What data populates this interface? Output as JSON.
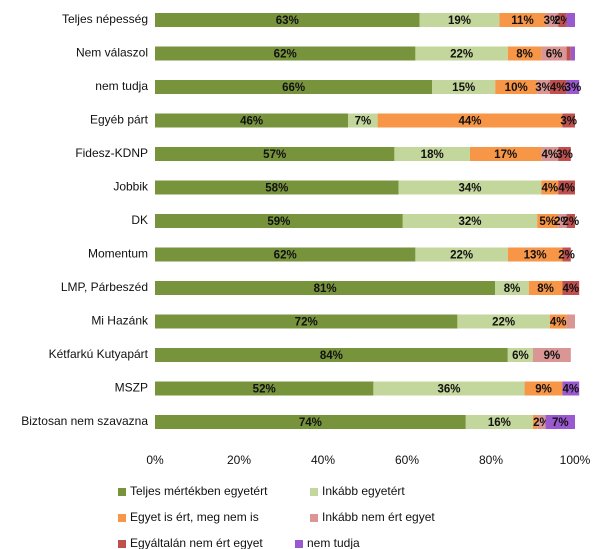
{
  "chart_data": {
    "type": "stacked-bar-horizontal",
    "categories": [
      "Teljes népesség",
      "Nem válaszol",
      "nem tudja",
      "Egyéb párt",
      "Fidesz-KDNP",
      "Jobbik",
      "DK",
      "Momentum",
      "LMP, Párbeszéd",
      "Mi Hazánk",
      "Kétfarkú Kutyapárt",
      "MSZP",
      "Biztosan nem szavazna"
    ],
    "series": [
      {
        "name": "Teljes mértékben egyetért",
        "color": "#77933c",
        "values": [
          63,
          62,
          66,
          46,
          57,
          58,
          59,
          62,
          81,
          72,
          84,
          52,
          74
        ],
        "value_labels": [
          "63%",
          "62%",
          "66%",
          "46%",
          "57%",
          "58%",
          "59%",
          "62%",
          "81%",
          "72%",
          "84%",
          "52%",
          "74%"
        ]
      },
      {
        "name": "Inkább egyetért",
        "color": "#c3d69b",
        "values": [
          19,
          22,
          15,
          7,
          18,
          34,
          32,
          22,
          8,
          22,
          6,
          36,
          16
        ],
        "value_labels": [
          "19%",
          "22%",
          "15%",
          "7%",
          "18%",
          "34%",
          "32%",
          "22%",
          "8%",
          "22%",
          "6%",
          "36%",
          "16%"
        ]
      },
      {
        "name": "Egyet is ért, meg nem is",
        "color": "#f79646",
        "values": [
          11,
          8,
          10,
          44,
          17,
          4,
          5,
          13,
          8,
          4,
          0,
          9,
          1
        ],
        "value_labels": [
          "11%",
          "8%",
          "10%",
          "44%",
          "17%",
          "4%",
          "5%",
          "13%",
          "8%",
          "4%",
          null,
          "9%",
          null
        ]
      },
      {
        "name": "Inkább nem ért egyet",
        "color": "#d99694",
        "values": [
          3,
          6,
          3,
          0,
          4,
          0,
          2,
          0,
          0,
          2,
          9,
          0,
          2
        ],
        "value_labels": [
          "3%",
          "6%",
          "3%",
          null,
          "4%",
          null,
          "2%",
          null,
          null,
          null,
          "9%",
          null,
          "2%"
        ]
      },
      {
        "name": "Egyáltalán nem ért egyet",
        "color": "#c0504d",
        "values": [
          2,
          1,
          4,
          3,
          3,
          4,
          2,
          2,
          4,
          0,
          0,
          0,
          0
        ],
        "value_labels": [
          "2%",
          null,
          "4%",
          "3%",
          "3%",
          "4%",
          "2%",
          "2%",
          "4%",
          null,
          null,
          null,
          null
        ]
      },
      {
        "name": "nem tudja",
        "color": "#9b59d0",
        "values": [
          2,
          1,
          3,
          0,
          0,
          0,
          0,
          0,
          0,
          0,
          0,
          4,
          7
        ],
        "value_labels": [
          null,
          null,
          "3%",
          null,
          null,
          null,
          null,
          null,
          null,
          null,
          null,
          "4%",
          "7%"
        ]
      }
    ],
    "xlim": [
      0,
      100
    ],
    "xticks": [
      {
        "value": 0,
        "label": "0%"
      },
      {
        "value": 20,
        "label": "20%"
      },
      {
        "value": 40,
        "label": "40%"
      },
      {
        "value": 60,
        "label": "60%"
      },
      {
        "value": 80,
        "label": "80%"
      },
      {
        "value": 100,
        "label": "100%"
      }
    ]
  }
}
